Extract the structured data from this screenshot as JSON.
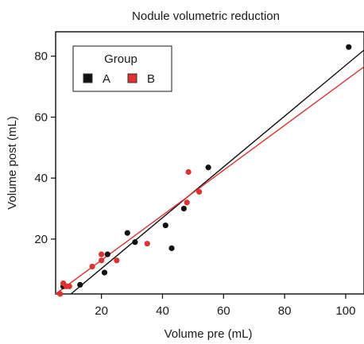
{
  "chart_data": {
    "type": "scatter",
    "title": "Nodule volumetric reduction",
    "xlabel": "Volume pre (mL)",
    "ylabel": "Volume post (mL)",
    "xlim": [
      5,
      106
    ],
    "ylim": [
      2,
      88
    ],
    "x_ticks": [
      20,
      40,
      60,
      80,
      100
    ],
    "y_ticks": [
      20,
      40,
      60,
      80
    ],
    "grid": false,
    "legend": {
      "title": "Group",
      "placement": "top-left",
      "entries": [
        "A",
        "B"
      ]
    },
    "series": [
      {
        "name": "A",
        "color": "#111111",
        "points": [
          [
            7.5,
            4.5
          ],
          [
            13,
            5
          ],
          [
            21,
            9
          ],
          [
            22,
            15
          ],
          [
            28.5,
            22
          ],
          [
            31,
            19
          ],
          [
            41,
            24.5
          ],
          [
            43,
            17
          ],
          [
            47,
            30
          ],
          [
            55,
            43.5
          ],
          [
            101,
            83
          ]
        ],
        "fit": [
          [
            10,
            2
          ],
          [
            106,
            82
          ]
        ]
      },
      {
        "name": "B",
        "color": "#e03030",
        "points": [
          [
            6.5,
            2
          ],
          [
            7.5,
            5.5
          ],
          [
            8.5,
            4.5
          ],
          [
            9.5,
            4.5
          ],
          [
            17,
            11
          ],
          [
            20,
            13
          ],
          [
            20,
            15
          ],
          [
            25,
            13
          ],
          [
            35,
            18.5
          ],
          [
            48,
            32
          ],
          [
            48.5,
            42
          ],
          [
            52,
            35.5
          ]
        ],
        "fit": [
          [
            5,
            2
          ],
          [
            106,
            76.5
          ]
        ]
      }
    ]
  }
}
